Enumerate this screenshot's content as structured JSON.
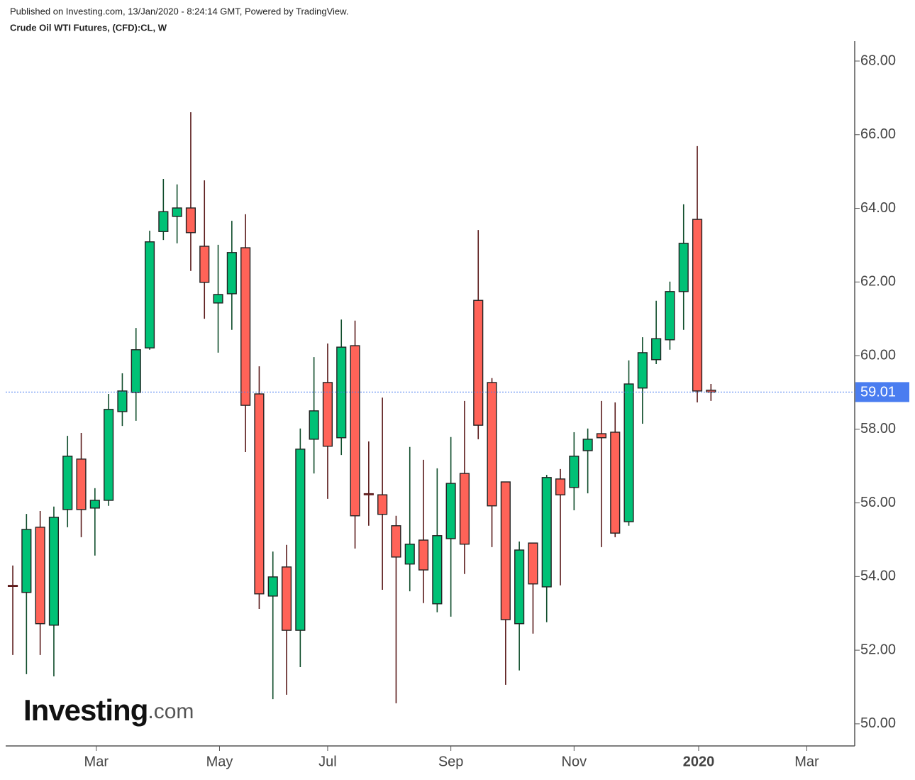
{
  "header": {
    "published": "Published on Investing.com, 13/Jan/2020 - 8:24:14 GMT, Powered by TradingView.",
    "symbol": "Crude Oil WTI Futures, (CFD):CL, W"
  },
  "logo": {
    "name": "Investing",
    "suffix": ".com"
  },
  "chart_data": {
    "type": "candlestick",
    "x": [
      0,
      1,
      2,
      3,
      4,
      5,
      6,
      7,
      8,
      9,
      10,
      11,
      12,
      13,
      14,
      15,
      16,
      17,
      18,
      19,
      20,
      21,
      22,
      23,
      24,
      25,
      26,
      27,
      28,
      29,
      30,
      31,
      32,
      33,
      34,
      35,
      36,
      37,
      38,
      39,
      40,
      41,
      42,
      43,
      44,
      45,
      46,
      47,
      48,
      49,
      50,
      51
    ],
    "open": [
      53.76,
      53.57,
      55.34,
      52.68,
      55.82,
      57.19,
      55.86,
      56.07,
      58.48,
      59.0,
      60.21,
      63.37,
      63.78,
      64.01,
      62.97,
      61.43,
      61.68,
      62.93,
      58.96,
      53.47,
      54.26,
      52.54,
      57.73,
      59.27,
      57.77,
      60.27,
      56.25,
      56.22,
      55.38,
      54.34,
      54.99,
      53.26,
      55.03,
      56.8,
      61.5,
      59.27,
      56.57,
      52.72,
      54.91,
      53.72,
      56.65,
      56.42,
      57.42,
      57.88,
      57.92,
      55.49,
      59.12,
      59.89,
      60.43,
      61.74,
      63.7,
      59.06
    ],
    "high": [
      54.3,
      55.7,
      55.78,
      55.9,
      57.82,
      57.9,
      56.4,
      58.96,
      59.52,
      60.75,
      63.39,
      64.8,
      64.65,
      66.61,
      64.76,
      63.01,
      63.66,
      63.84,
      59.71,
      54.68,
      54.86,
      58.02,
      59.96,
      60.33,
      60.98,
      60.95,
      57.67,
      58.86,
      55.65,
      57.52,
      57.17,
      56.94,
      57.79,
      58.77,
      63.41,
      59.39,
      56.57,
      54.95,
      54.91,
      56.76,
      56.92,
      57.92,
      58.02,
      58.77,
      58.73,
      59.87,
      60.5,
      61.49,
      62.01,
      64.11,
      65.69,
      59.23
    ],
    "low": [
      51.87,
      51.35,
      51.87,
      51.29,
      55.34,
      55.07,
      54.57,
      55.92,
      58.09,
      58.23,
      60.16,
      63.14,
      63.05,
      62.3,
      61.0,
      60.08,
      60.7,
      57.38,
      53.12,
      50.67,
      50.79,
      51.54,
      56.8,
      56.11,
      57.3,
      54.76,
      55.38,
      53.64,
      50.56,
      53.6,
      53.28,
      53.03,
      52.91,
      54.07,
      57.73,
      54.8,
      51.06,
      51.45,
      52.45,
      52.76,
      53.76,
      55.8,
      56.26,
      54.8,
      55.07,
      55.38,
      58.15,
      59.77,
      60.16,
      60.7,
      58.73,
      58.77
    ],
    "close": [
      53.74,
      55.28,
      52.72,
      55.61,
      57.27,
      55.82,
      56.07,
      58.54,
      59.04,
      60.16,
      63.09,
      63.91,
      64.01,
      63.34,
      61.99,
      61.66,
      62.8,
      58.65,
      53.53,
      53.99,
      52.54,
      57.46,
      58.5,
      57.54,
      60.23,
      55.65,
      56.23,
      55.69,
      54.53,
      54.88,
      54.18,
      55.11,
      56.53,
      54.88,
      58.11,
      55.92,
      52.83,
      54.72,
      53.8,
      56.69,
      56.22,
      57.27,
      57.73,
      57.77,
      55.18,
      59.23,
      60.08,
      60.46,
      61.74,
      63.05,
      59.04,
      59.01
    ],
    "up_color": "#00c176",
    "down_color": "#ff6358",
    "up_wick": "#0f4d2b",
    "down_wick": "#5a1a1a",
    "last_price": {
      "value": 59.01,
      "label": "59.01"
    },
    "last_price_color": "#4a7df0",
    "xlim": [
      -0.52,
      61.5
    ],
    "xticks": [
      {
        "value": 6.1,
        "label": "Mar"
      },
      {
        "value": 15.1,
        "label": "May"
      },
      {
        "value": 23.0,
        "label": "Jul"
      },
      {
        "value": 32.0,
        "label": "Sep"
      },
      {
        "value": 41.0,
        "label": "Nov"
      },
      {
        "value": 50.1,
        "label": "2020"
      },
      {
        "value": 58.0,
        "label": "Mar"
      }
    ],
    "ylim": [
      49.4,
      68.54
    ],
    "yticks": [
      {
        "value": 50,
        "label": "50.00"
      },
      {
        "value": 52,
        "label": "52.00"
      },
      {
        "value": 54,
        "label": "54.00"
      },
      {
        "value": 56,
        "label": "56.00"
      },
      {
        "value": 58,
        "label": "58.00"
      },
      {
        "value": 60,
        "label": "60.00"
      },
      {
        "value": 62,
        "label": "62.00"
      },
      {
        "value": 64,
        "label": "64.00"
      },
      {
        "value": 66,
        "label": "66.00"
      },
      {
        "value": 68,
        "label": "68.00"
      }
    ],
    "y_axis_side": "right"
  }
}
